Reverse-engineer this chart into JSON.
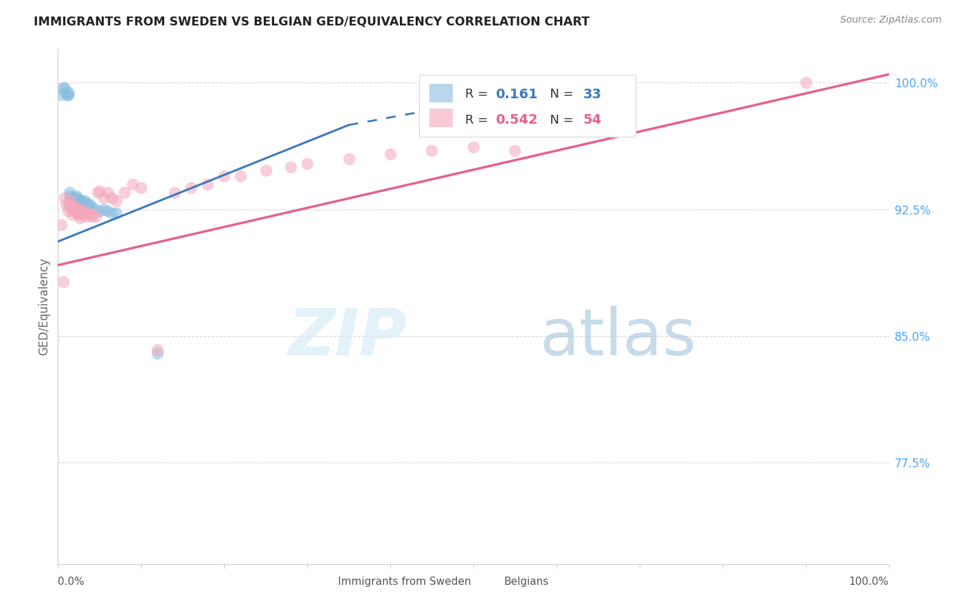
{
  "title": "IMMIGRANTS FROM SWEDEN VS BELGIAN GED/EQUIVALENCY CORRELATION CHART",
  "source": "Source: ZipAtlas.com",
  "ylabel": "GED/Equivalency",
  "ytick_positions": [
    0.775,
    0.85,
    0.925,
    1.0
  ],
  "ytick_labels": [
    "77.5%",
    "85.0%",
    "92.5%",
    "100.0%"
  ],
  "xlim": [
    0.0,
    1.0
  ],
  "ylim": [
    0.715,
    1.02
  ],
  "legend_label1": "Immigrants from Sweden",
  "legend_label2": "Belgians",
  "R1": 0.161,
  "N1": 33,
  "R2": 0.542,
  "N2": 54,
  "blue_color": "#89bde0",
  "blue_line_color": "#3a7bbf",
  "pink_color": "#f4a7bc",
  "pink_line_color": "#e8608a",
  "sweden_x": [
    0.004,
    0.006,
    0.008,
    0.01,
    0.011,
    0.012,
    0.013,
    0.014,
    0.015,
    0.016,
    0.017,
    0.018,
    0.019,
    0.02,
    0.022,
    0.023,
    0.024,
    0.025,
    0.027,
    0.028,
    0.03,
    0.032,
    0.034,
    0.036,
    0.038,
    0.04,
    0.045,
    0.05,
    0.055,
    0.06,
    0.065,
    0.07,
    0.12
  ],
  "sweden_y": [
    0.993,
    0.997,
    0.997,
    0.994,
    0.993,
    0.993,
    0.994,
    0.935,
    0.933,
    0.932,
    0.931,
    0.932,
    0.931,
    0.93,
    0.933,
    0.932,
    0.93,
    0.931,
    0.929,
    0.93,
    0.928,
    0.93,
    0.929,
    0.927,
    0.928,
    0.927,
    0.925,
    0.924,
    0.925,
    0.924,
    0.923,
    0.923,
    0.84
  ],
  "belgian_x": [
    0.004,
    0.006,
    0.008,
    0.01,
    0.012,
    0.013,
    0.014,
    0.015,
    0.016,
    0.017,
    0.018,
    0.019,
    0.02,
    0.021,
    0.022,
    0.023,
    0.024,
    0.025,
    0.026,
    0.027,
    0.028,
    0.029,
    0.03,
    0.032,
    0.034,
    0.036,
    0.038,
    0.04,
    0.042,
    0.045,
    0.048,
    0.05,
    0.055,
    0.06,
    0.065,
    0.07,
    0.08,
    0.09,
    0.1,
    0.12,
    0.14,
    0.16,
    0.18,
    0.2,
    0.22,
    0.25,
    0.28,
    0.3,
    0.35,
    0.4,
    0.45,
    0.5,
    0.55,
    0.9
  ],
  "belgian_y": [
    0.916,
    0.882,
    0.932,
    0.928,
    0.924,
    0.927,
    0.93,
    0.928,
    0.925,
    0.922,
    0.926,
    0.927,
    0.925,
    0.926,
    0.925,
    0.924,
    0.922,
    0.923,
    0.92,
    0.925,
    0.924,
    0.923,
    0.922,
    0.924,
    0.921,
    0.923,
    0.922,
    0.921,
    0.922,
    0.921,
    0.935,
    0.936,
    0.932,
    0.935,
    0.932,
    0.93,
    0.935,
    0.94,
    0.938,
    0.842,
    0.935,
    0.938,
    0.94,
    0.945,
    0.945,
    0.948,
    0.95,
    0.952,
    0.955,
    0.958,
    0.96,
    0.962,
    0.96,
    1.0
  ],
  "watermark_zip": "ZIP",
  "watermark_atlas": "atlas",
  "background_color": "#ffffff",
  "grid_color": "#cccccc",
  "blue_line_solid_end": 0.35,
  "blue_line_dashed_end": 0.55,
  "pink_line_start": 0.0,
  "pink_line_end": 1.0
}
